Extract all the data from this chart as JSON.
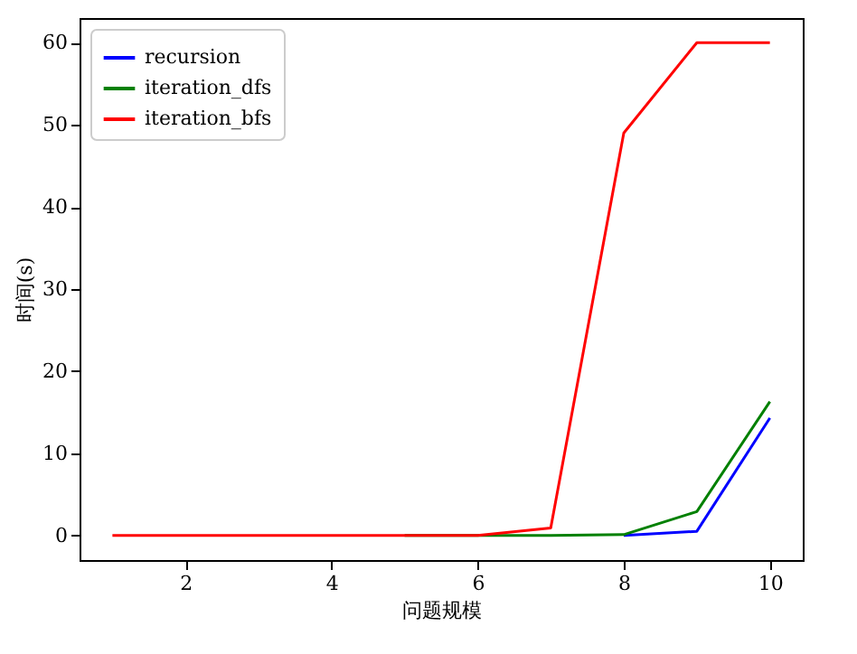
{
  "chart_data": {
    "type": "line",
    "xlabel": "问题规模",
    "ylabel": "时间(s)",
    "x": [
      1,
      2,
      3,
      4,
      5,
      6,
      7,
      8,
      9,
      10
    ],
    "series": [
      {
        "name": "recursion",
        "color": "#0000ff",
        "values": [
          null,
          null,
          null,
          null,
          null,
          null,
          null,
          0,
          0.5,
          14.3
        ]
      },
      {
        "name": "iteration_dfs",
        "color": "#008000",
        "values": [
          null,
          null,
          null,
          null,
          0,
          0,
          0,
          0.1,
          2.9,
          16.3
        ]
      },
      {
        "name": "iteration_bfs",
        "color": "#ff0000",
        "values": [
          0,
          0,
          0,
          0,
          0,
          0,
          0.9,
          49,
          60,
          60
        ]
      }
    ],
    "xlim": [
      0.55,
      10.45
    ],
    "xticks": [
      2,
      4,
      6,
      8,
      10
    ],
    "ylim": [
      -3,
      63
    ],
    "yticks": [
      0,
      10,
      20,
      30,
      40,
      50,
      60
    ],
    "grid": false,
    "legend": "top left",
    "line_style": "solid"
  }
}
